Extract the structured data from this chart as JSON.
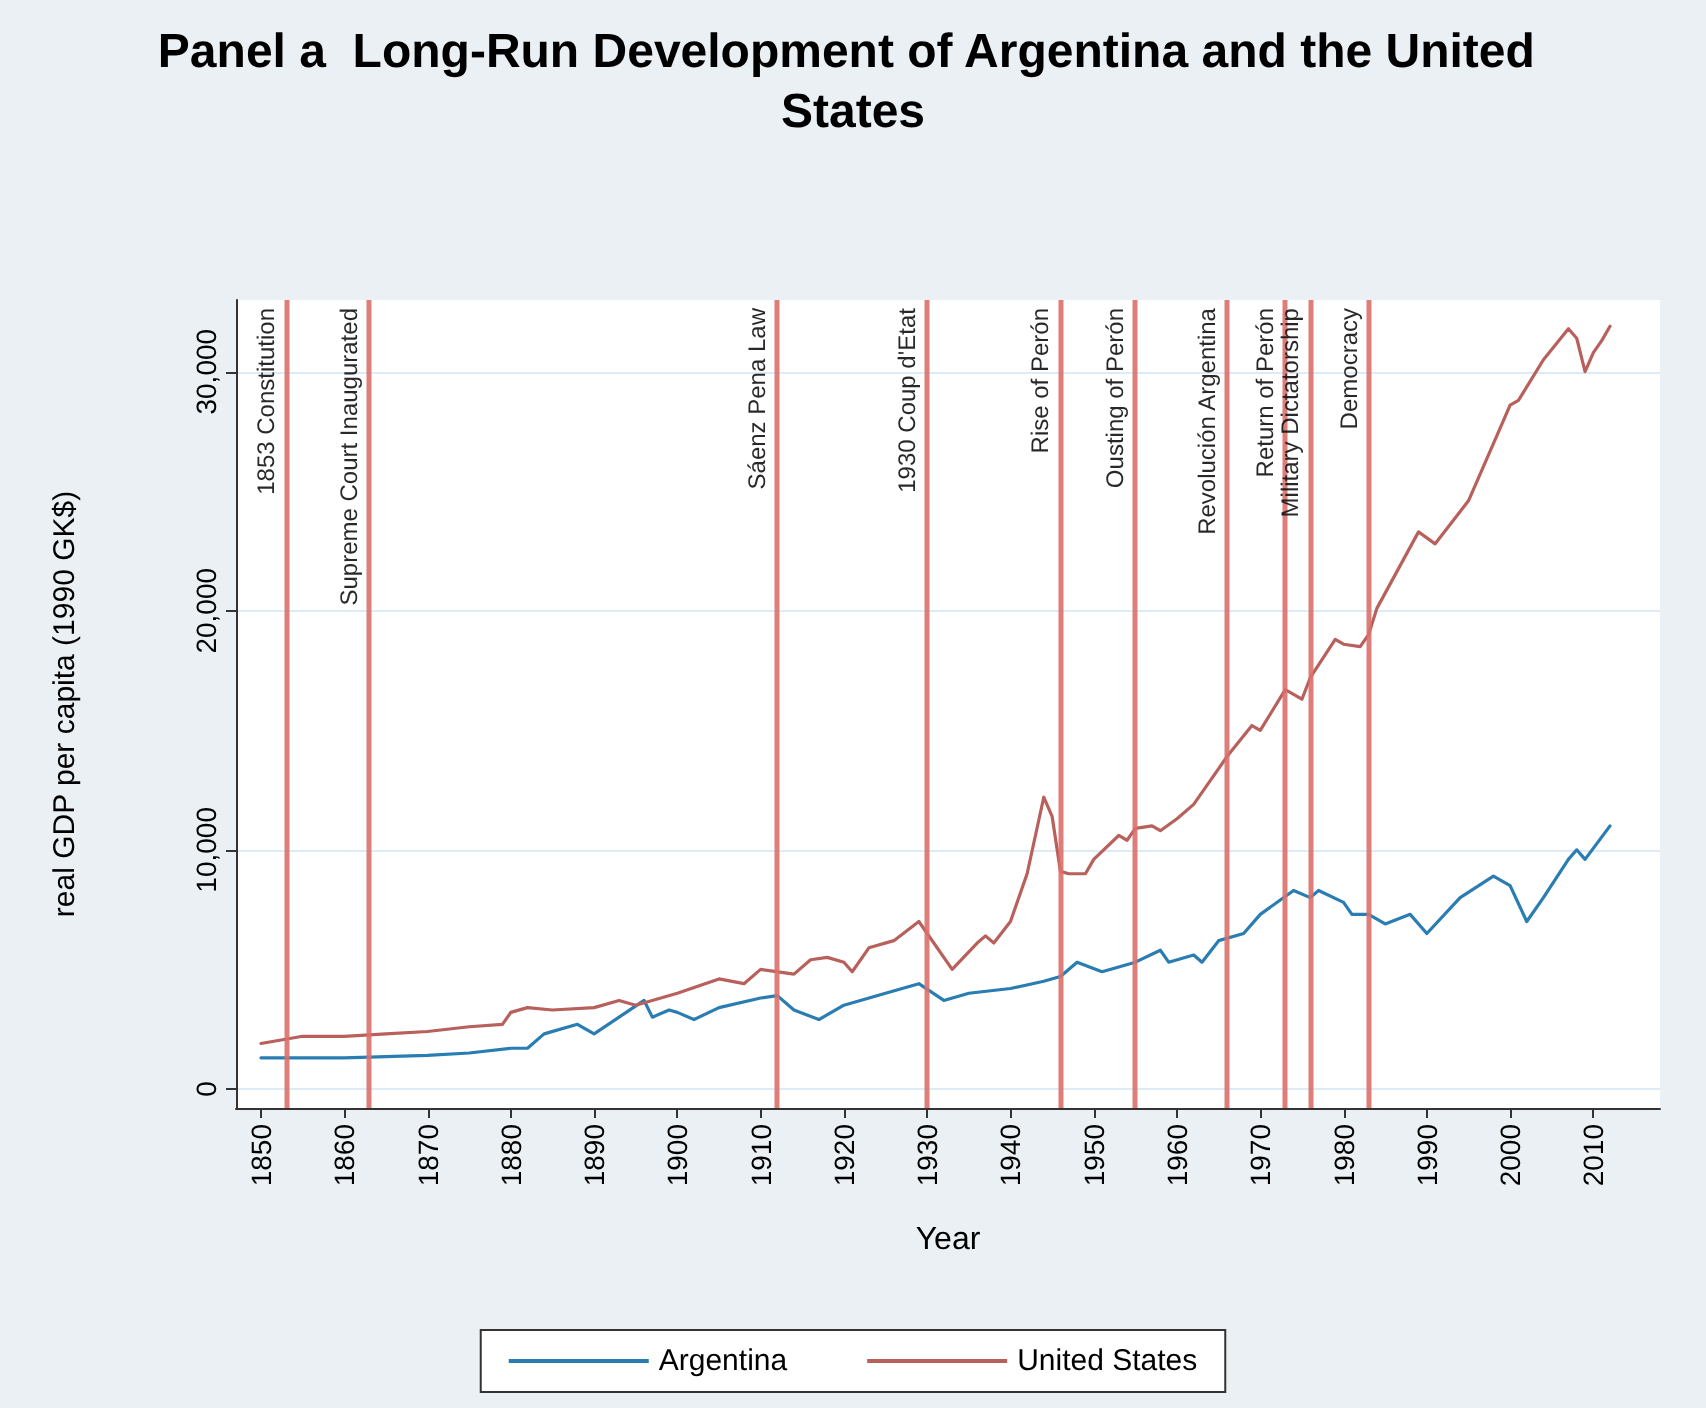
{
  "chart_data": {
    "type": "line",
    "title": "Panel a  Long-Run Development of Argentina and the United States",
    "xlabel": "Year",
    "ylabel": "real GDP per capita (1990 GK$)",
    "xlim": [
      1847,
      2018
    ],
    "xticks": [
      1850,
      1860,
      1870,
      1880,
      1890,
      1900,
      1910,
      1920,
      1930,
      1940,
      1950,
      1960,
      1970,
      1980,
      1990,
      2000,
      2010
    ],
    "ylim": [
      -800,
      33000
    ],
    "yticks": [
      0,
      {
        "value": 10000,
        "label": "10,000"
      },
      {
        "value": 20000,
        "label": "20,000"
      },
      {
        "value": 30000,
        "label": "30,000"
      }
    ],
    "grid": "y",
    "legend": "bottom",
    "marker": "none",
    "line_style": "solid",
    "series": [
      {
        "name": "Argentina",
        "color": "#2a7db2",
        "x": [
          1850,
          1860,
          1870,
          1875,
          1880,
          1882,
          1884,
          1888,
          1890,
          1893,
          1896,
          1897,
          1899,
          1900,
          1902,
          1905,
          1910,
          1912,
          1914,
          1917,
          1920,
          1925,
          1929,
          1932,
          1935,
          1940,
          1944,
          1946,
          1948,
          1951,
          1955,
          1958,
          1959,
          1962,
          1963,
          1965,
          1968,
          1970,
          1974,
          1976,
          1977,
          1980,
          1981,
          1983,
          1985,
          1988,
          1990,
          1994,
          1998,
          2000,
          2002,
          2004,
          2007,
          2008,
          2009,
          2012
        ],
        "values": [
          1300,
          1300,
          1400,
          1500,
          1700,
          1700,
          2300,
          2700,
          2300,
          3000,
          3700,
          3000,
          3300,
          3200,
          2900,
          3400,
          3800,
          3900,
          3300,
          2900,
          3500,
          4000,
          4400,
          3700,
          4000,
          4200,
          4500,
          4700,
          5300,
          4900,
          5300,
          5800,
          5300,
          5600,
          5300,
          6200,
          6500,
          7300,
          8300,
          8000,
          8300,
          7800,
          7300,
          7300,
          6900,
          7300,
          6500,
          8000,
          8900,
          8500,
          7000,
          8000,
          9600,
          10000,
          9600,
          11000
        ]
      },
      {
        "name": "United States",
        "color": "#b8605c",
        "x": [
          1850,
          1855,
          1860,
          1865,
          1870,
          1875,
          1879,
          1880,
          1882,
          1885,
          1890,
          1893,
          1895,
          1900,
          1905,
          1908,
          1910,
          1914,
          1916,
          1918,
          1920,
          1921,
          1923,
          1926,
          1929,
          1933,
          1936,
          1937,
          1938,
          1940,
          1942,
          1944,
          1945,
          1946,
          1947,
          1949,
          1950,
          1953,
          1954,
          1955,
          1957,
          1958,
          1960,
          1962,
          1965,
          1966,
          1969,
          1970,
          1973,
          1974,
          1975,
          1976,
          1979,
          1980,
          1982,
          1983,
          1984,
          1989,
          1991,
          1995,
          1999,
          2000,
          2001,
          2004,
          2007,
          2008,
          2009,
          2010,
          2011,
          2012
        ],
        "values": [
          1900,
          2200,
          2200,
          2300,
          2400,
          2600,
          2700,
          3200,
          3400,
          3300,
          3400,
          3700,
          3500,
          4000,
          4600,
          4400,
          5000,
          4800,
          5400,
          5500,
          5300,
          4900,
          5900,
          6200,
          7000,
          5000,
          6100,
          6400,
          6100,
          7000,
          9000,
          12200,
          11400,
          9100,
          9000,
          9000,
          9600,
          10600,
          10400,
          10900,
          11000,
          10800,
          11300,
          11900,
          13400,
          13900,
          15200,
          15000,
          16700,
          16500,
          16300,
          17200,
          18800,
          18600,
          18500,
          19000,
          20100,
          23300,
          22800,
          24600,
          27800,
          28600,
          28800,
          30500,
          31800,
          31400,
          30000,
          30800,
          31300,
          31900
        ]
      }
    ],
    "ref_lines": [
      {
        "axis": "x",
        "value": 1853,
        "label": "1853 Constitution",
        "color": "#d9706a"
      },
      {
        "axis": "x",
        "value": 1863,
        "label": "Supreme Court Inaugurated",
        "color": "#d9706a"
      },
      {
        "axis": "x",
        "value": 1912,
        "label": "Sáenz Pena Law",
        "color": "#d9706a"
      },
      {
        "axis": "x",
        "value": 1930,
        "label": "1930 Coup d'Etat",
        "color": "#d9706a"
      },
      {
        "axis": "x",
        "value": 1946,
        "label": "Rise of Perón",
        "color": "#d9706a"
      },
      {
        "axis": "x",
        "value": 1955,
        "label": "Ousting of Perón",
        "color": "#d9706a"
      },
      {
        "axis": "x",
        "value": 1966,
        "label": "Revolución Argentina",
        "color": "#d9706a"
      },
      {
        "axis": "x",
        "value": 1973,
        "label": "Return of Perón",
        "color": "#d9706a"
      },
      {
        "axis": "x",
        "value": 1976,
        "label": "Military Dictatorship",
        "color": "#d9706a"
      },
      {
        "axis": "x",
        "value": 1983,
        "label": "Democracy",
        "color": "#d9706a"
      }
    ]
  }
}
